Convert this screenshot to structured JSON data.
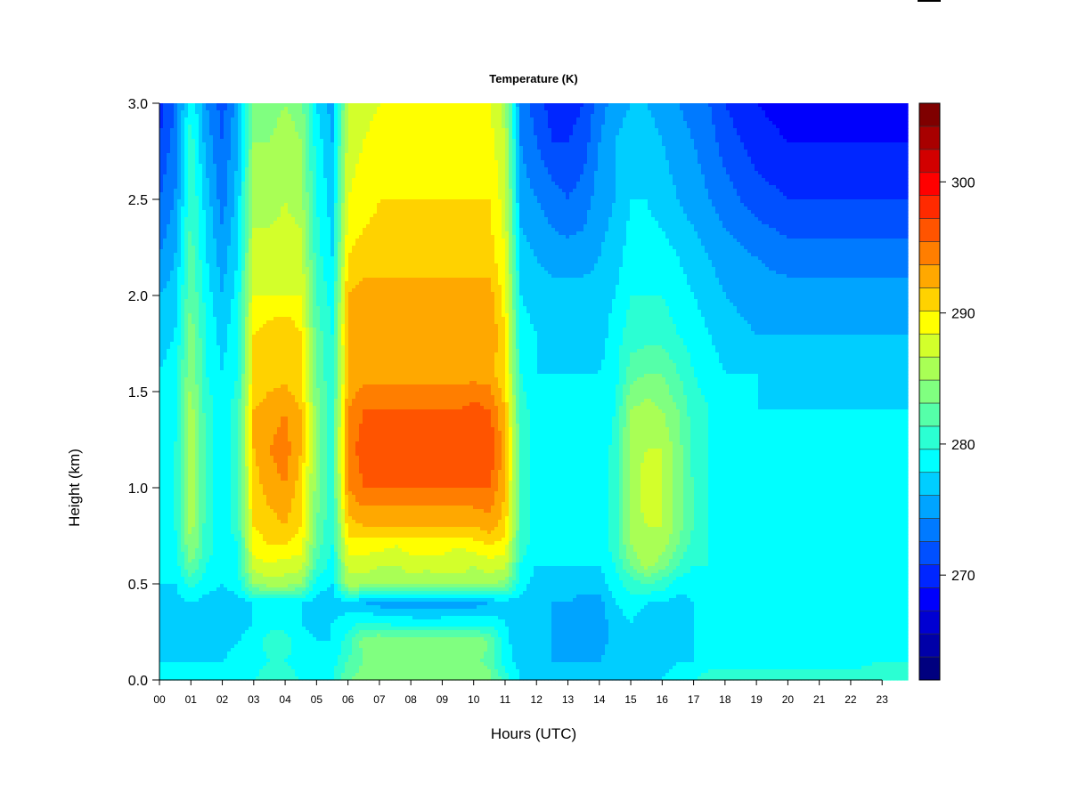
{
  "chart_data": {
    "type": "heatmap",
    "title": "Temperature (K)",
    "xlabel": "Hours (UTC)",
    "ylabel": "Height (km)",
    "xlim": [
      0,
      23.85
    ],
    "ylim": [
      0.0,
      3.0
    ],
    "x_ticks": [
      "00",
      "01",
      "02",
      "03",
      "04",
      "05",
      "06",
      "07",
      "08",
      "09",
      "10",
      "11",
      "12",
      "13",
      "14",
      "15",
      "16",
      "17",
      "18",
      "19",
      "20",
      "21",
      "22",
      "23"
    ],
    "y_ticks": [
      "0.0",
      "0.5",
      "1.0",
      "1.5",
      "2.0",
      "2.5",
      "3.0"
    ],
    "colorbar": {
      "range": [
        262,
        306
      ],
      "step": 2,
      "ticks": [
        "270",
        "280",
        "290",
        "300"
      ],
      "levels": [
        "#00007F",
        "#0000A8",
        "#0000D2",
        "#0000FC",
        "#0026FF",
        "#0050FF",
        "#007AFF",
        "#00A4FF",
        "#00CEFF",
        "#00FFFF",
        "#2BFFD3",
        "#55FFA9",
        "#80FF80",
        "#A9FF55",
        "#D3FF2B",
        "#FFFF00",
        "#FFD200",
        "#FFA800",
        "#FF7E00",
        "#FF5400",
        "#FF2A00",
        "#FF0000",
        "#D20000",
        "#A80000",
        "#7F0000"
      ]
    },
    "temperature_grid": {
      "hours": [
        0,
        0.5,
        1,
        1.5,
        2,
        2.5,
        3,
        3.5,
        4,
        4.5,
        5,
        5.5,
        6,
        6.5,
        7,
        7.5,
        8,
        8.5,
        9,
        9.5,
        10,
        10.5,
        11,
        11.5,
        12,
        12.5,
        13,
        13.5,
        14,
        14.5,
        15,
        15.5,
        16,
        16.5,
        17,
        17.5,
        18,
        19,
        20,
        21,
        22,
        23,
        23.85
      ],
      "heights_km": [
        0.0,
        0.1,
        0.2,
        0.3,
        0.4,
        0.5,
        0.6,
        0.7,
        0.8,
        1.0,
        1.2,
        1.4,
        1.6,
        1.8,
        2.0,
        2.2,
        2.5,
        2.8,
        3.0
      ],
      "values_K": [
        [
          281,
          282,
          281,
          281,
          281,
          282,
          282,
          283,
          283,
          282,
          281,
          282,
          286,
          287,
          288,
          287,
          287,
          287,
          287,
          287,
          288,
          287,
          283,
          280,
          279,
          279,
          279,
          279,
          279,
          279,
          279,
          280,
          280,
          281,
          282,
          283,
          283,
          283,
          283,
          283,
          283,
          284,
          284
        ],
        [
          280,
          280,
          280,
          280,
          280,
          281,
          281,
          282,
          282,
          281,
          280,
          281,
          284,
          286,
          287,
          286,
          286,
          286,
          286,
          286,
          287,
          285,
          281,
          279,
          278,
          278,
          278,
          278,
          278,
          279,
          279,
          279,
          279,
          280,
          280,
          281,
          281,
          281,
          281,
          281,
          281,
          282,
          282
        ],
        [
          279,
          279,
          279,
          279,
          279,
          280,
          281,
          283,
          283,
          281,
          280,
          280,
          283,
          287,
          288,
          287,
          287,
          288,
          288,
          287,
          288,
          286,
          281,
          278,
          278,
          278,
          277,
          277,
          277,
          279,
          279,
          278,
          279,
          279,
          280,
          280,
          280,
          280,
          280,
          280,
          280,
          280,
          280
        ],
        [
          279,
          279,
          279,
          279,
          279,
          279,
          280,
          281,
          281,
          280,
          279,
          280,
          281,
          282,
          282,
          281,
          281,
          281,
          281,
          281,
          281,
          281,
          280,
          278,
          278,
          278,
          277,
          277,
          277,
          279,
          280,
          279,
          279,
          279,
          280,
          280,
          280,
          280,
          280,
          280,
          280,
          280,
          280
        ],
        [
          279,
          279,
          280,
          279,
          279,
          279,
          280,
          280,
          280,
          280,
          279,
          279,
          279,
          278,
          277,
          277,
          277,
          276,
          277,
          277,
          277,
          278,
          279,
          279,
          278,
          278,
          278,
          277,
          277,
          280,
          281,
          280,
          280,
          279,
          280,
          280,
          280,
          280,
          280,
          280,
          280,
          280,
          280
        ],
        [
          280,
          280,
          283,
          281,
          280,
          281,
          288,
          289,
          289,
          288,
          281,
          280,
          289,
          289,
          289,
          288,
          289,
          288,
          289,
          289,
          289,
          289,
          287,
          281,
          279,
          279,
          279,
          279,
          279,
          281,
          283,
          284,
          283,
          281,
          281,
          281,
          280,
          280,
          280,
          281,
          281,
          281,
          281
        ],
        [
          281,
          281,
          286,
          282,
          281,
          282,
          291,
          292,
          291,
          291,
          284,
          281,
          291,
          291,
          290,
          290,
          291,
          291,
          291,
          291,
          290,
          291,
          291,
          282,
          280,
          280,
          280,
          280,
          280,
          282,
          286,
          289,
          287,
          284,
          282,
          282,
          281,
          281,
          281,
          281,
          281,
          281,
          281
        ],
        [
          281,
          281,
          288,
          283,
          281,
          282,
          293,
          294,
          294,
          293,
          285,
          282,
          293,
          293,
          293,
          292,
          293,
          293,
          293,
          292,
          293,
          294,
          293,
          283,
          281,
          281,
          281,
          281,
          281,
          283,
          288,
          290,
          289,
          286,
          283,
          282,
          281,
          281,
          281,
          281,
          281,
          281,
          281
        ],
        [
          281,
          282,
          289,
          283,
          281,
          283,
          294,
          295,
          296,
          294,
          286,
          282,
          295,
          296,
          296,
          296,
          296,
          296,
          296,
          296,
          296,
          297,
          295,
          284,
          281,
          281,
          281,
          281,
          281,
          283,
          289,
          290,
          290,
          287,
          284,
          282,
          281,
          281,
          281,
          281,
          281,
          281,
          281
        ],
        [
          281,
          282,
          290,
          283,
          281,
          283,
          295,
          297,
          298,
          295,
          287,
          283,
          298,
          300,
          300,
          300,
          300,
          300,
          300,
          300,
          300,
          300,
          296,
          284,
          281,
          281,
          281,
          281,
          281,
          283,
          289,
          291,
          290,
          287,
          284,
          282,
          281,
          281,
          281,
          281,
          281,
          281,
          281
        ],
        [
          281,
          282,
          290,
          283,
          281,
          283,
          296,
          298,
          299,
          296,
          287,
          283,
          299,
          301,
          302,
          301,
          301,
          302,
          301,
          301,
          302,
          302,
          297,
          284,
          281,
          281,
          281,
          280,
          280,
          283,
          289,
          290,
          290,
          287,
          283,
          282,
          281,
          281,
          281,
          281,
          281,
          281,
          281
        ],
        [
          281,
          281,
          289,
          283,
          281,
          283,
          296,
          297,
          298,
          296,
          287,
          283,
          298,
          300,
          300,
          300,
          300,
          300,
          300,
          300,
          301,
          300,
          296,
          283,
          281,
          281,
          281,
          280,
          280,
          282,
          288,
          289,
          288,
          286,
          283,
          282,
          281,
          280,
          280,
          280,
          280,
          280,
          280
        ],
        [
          280,
          281,
          288,
          282,
          280,
          282,
          294,
          295,
          295,
          294,
          286,
          282,
          296,
          297,
          297,
          297,
          297,
          297,
          297,
          297,
          297,
          297,
          294,
          282,
          280,
          280,
          280,
          280,
          280,
          281,
          285,
          286,
          286,
          284,
          282,
          281,
          280,
          280,
          279,
          279,
          279,
          279,
          279
        ],
        [
          279,
          280,
          287,
          282,
          279,
          282,
          294,
          295,
          296,
          294,
          285,
          282,
          297,
          298,
          298,
          298,
          298,
          298,
          298,
          298,
          298,
          298,
          294,
          281,
          280,
          279,
          279,
          279,
          279,
          281,
          283,
          283,
          283,
          282,
          281,
          280,
          279,
          278,
          278,
          278,
          278,
          278,
          278
        ],
        [
          278,
          279,
          286,
          281,
          278,
          281,
          292,
          292,
          292,
          292,
          284,
          281,
          296,
          297,
          297,
          297,
          297,
          297,
          297,
          297,
          297,
          297,
          293,
          280,
          279,
          279,
          279,
          279,
          279,
          280,
          282,
          282,
          282,
          281,
          280,
          279,
          278,
          277,
          277,
          277,
          277,
          277,
          277
        ],
        [
          276,
          278,
          285,
          280,
          277,
          280,
          291,
          291,
          291,
          291,
          283,
          280,
          294,
          295,
          295,
          295,
          295,
          295,
          295,
          295,
          295,
          295,
          292,
          279,
          278,
          277,
          277,
          277,
          278,
          279,
          281,
          281,
          281,
          280,
          279,
          278,
          277,
          276,
          275,
          275,
          275,
          275,
          275
        ],
        [
          274,
          276,
          284,
          279,
          275,
          279,
          289,
          289,
          290,
          289,
          282,
          279,
          292,
          293,
          294,
          294,
          294,
          294,
          294,
          294,
          294,
          294,
          291,
          277,
          276,
          275,
          274,
          275,
          277,
          278,
          280,
          280,
          279,
          278,
          277,
          276,
          275,
          273,
          272,
          272,
          272,
          272,
          272
        ],
        [
          272,
          275,
          283,
          277,
          274,
          278,
          288,
          288,
          289,
          288,
          281,
          278,
          291,
          292,
          293,
          293,
          293,
          293,
          293,
          293,
          293,
          293,
          290,
          276,
          274,
          272,
          272,
          273,
          276,
          278,
          279,
          279,
          278,
          277,
          276,
          275,
          273,
          271,
          270,
          270,
          270,
          270,
          270
        ],
        [
          271,
          274,
          282,
          276,
          273,
          277,
          287,
          287,
          288,
          287,
          280,
          277,
          290,
          291,
          292,
          292,
          292,
          292,
          292,
          292,
          292,
          292,
          289,
          275,
          273,
          271,
          271,
          272,
          275,
          277,
          278,
          278,
          277,
          276,
          275,
          274,
          272,
          270,
          269,
          268,
          268,
          268,
          268
        ]
      ]
    }
  }
}
